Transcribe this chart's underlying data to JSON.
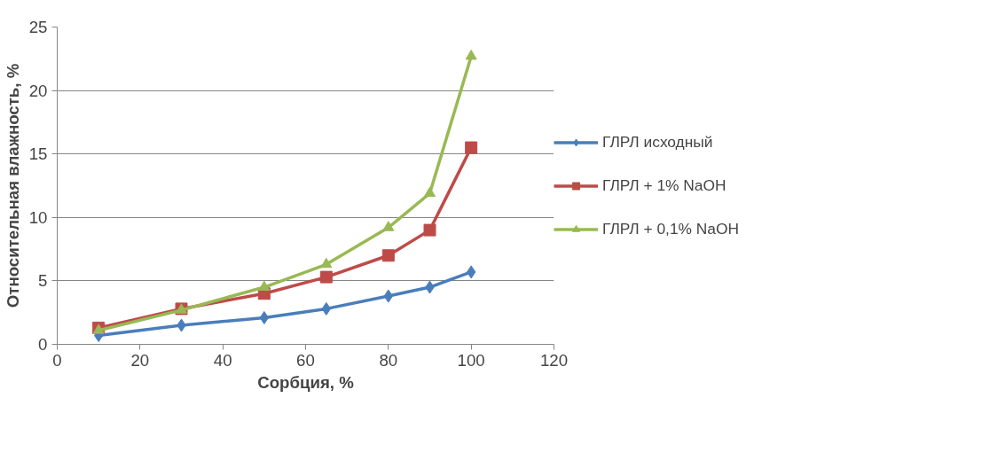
{
  "chart_data": {
    "type": "line",
    "xlabel": "Сорбция, %",
    "ylabel": "Относительная влажность, %",
    "x": [
      10,
      30,
      50,
      65,
      80,
      90,
      100
    ],
    "xlim": [
      0,
      120
    ],
    "xticks": [
      0,
      20,
      40,
      60,
      80,
      100,
      120
    ],
    "ylim": [
      0,
      25
    ],
    "yticks": [
      0,
      5,
      10,
      15,
      20,
      25
    ],
    "grid": "y",
    "legend": "right",
    "series": [
      {
        "name": "ГЛРЛ исходный",
        "color": "#4a7ebb",
        "marker": "diamond",
        "values": [
          0.7,
          1.5,
          2.1,
          2.8,
          3.8,
          4.5,
          5.7
        ]
      },
      {
        "name": "ГЛРЛ + 1% NaOH",
        "color": "#be4b48",
        "marker": "square",
        "values": [
          1.3,
          2.8,
          4.0,
          5.3,
          7.0,
          9.0,
          15.5
        ]
      },
      {
        "name": "ГЛРЛ + 0,1% NaOH",
        "color": "#98b954",
        "marker": "triangle",
        "values": [
          1.1,
          2.7,
          4.5,
          6.3,
          9.2,
          11.9,
          22.7
        ]
      }
    ]
  }
}
